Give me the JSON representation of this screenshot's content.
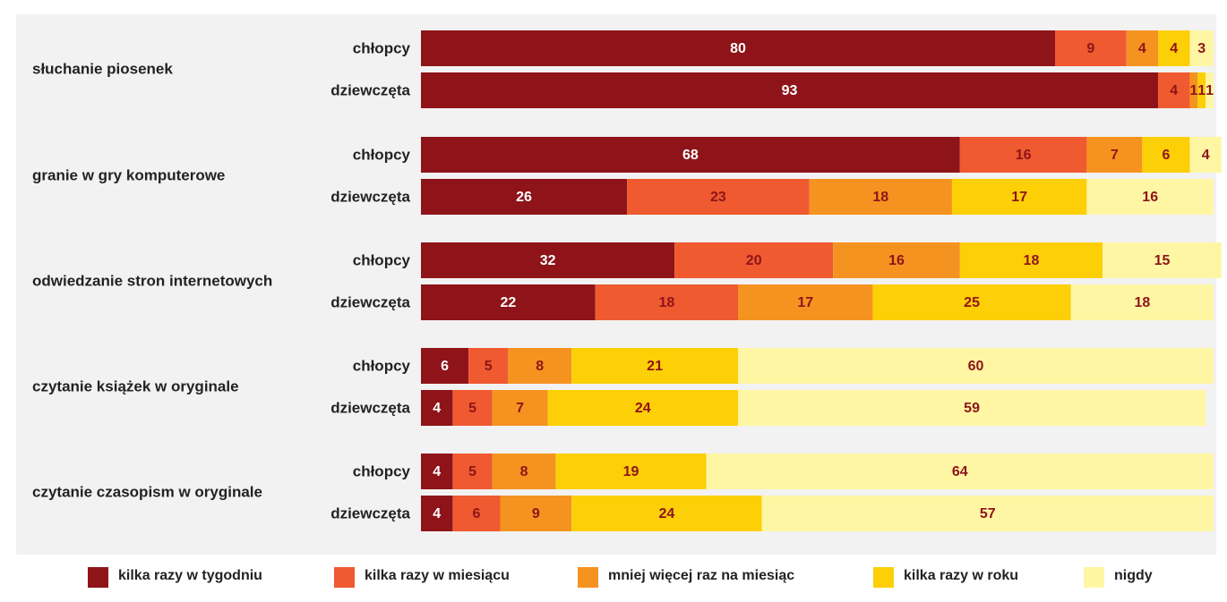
{
  "chart_data": {
    "type": "bar",
    "orientation": "horizontal",
    "stacked": true,
    "title": "",
    "xlabel": "",
    "ylabel": "",
    "xlim": [
      0,
      100
    ],
    "grid": false,
    "legend_position": "bottom",
    "groups": [
      "chłopcy",
      "dziewczęta"
    ],
    "activities": [
      "słuchanie piosenek",
      "granie w gry komputerowe",
      "odwiedzanie stron internetowych",
      "czytanie książek w oryginale",
      "czytanie czasopism w oryginale"
    ],
    "series": [
      {
        "name": "kilka razy w tygodniu",
        "color": "#8e1419",
        "label_color": "#ffffff",
        "values": {
          "chłopcy": [
            80,
            68,
            32,
            6,
            4
          ],
          "dziewczęta": [
            93,
            26,
            22,
            4,
            4
          ]
        }
      },
      {
        "name": "kilka razy w miesiącu",
        "color": "#ef5a30",
        "label_color": "#8e1419",
        "values": {
          "chłopcy": [
            9,
            16,
            20,
            5,
            5
          ],
          "dziewczęta": [
            4,
            23,
            18,
            5,
            6
          ]
        }
      },
      {
        "name": "mniej więcej raz na miesiąc",
        "color": "#f59320",
        "label_color": "#8e1419",
        "values": {
          "chłopcy": [
            4,
            7,
            16,
            8,
            8
          ],
          "dziewczęta": [
            1,
            18,
            17,
            7,
            9
          ]
        }
      },
      {
        "name": "kilka razy w roku",
        "color": "#fdcf07",
        "label_color": "#8e1419",
        "values": {
          "chłopcy": [
            4,
            6,
            18,
            21,
            19
          ],
          "dziewczęta": [
            1,
            17,
            25,
            24,
            24
          ]
        }
      },
      {
        "name": "nigdy",
        "color": "#fff6a4",
        "label_color": "#8e1419",
        "values": {
          "chłopcy": [
            3,
            4,
            15,
            60,
            64
          ],
          "dziewczęta": [
            1,
            16,
            18,
            59,
            57
          ]
        }
      }
    ]
  }
}
